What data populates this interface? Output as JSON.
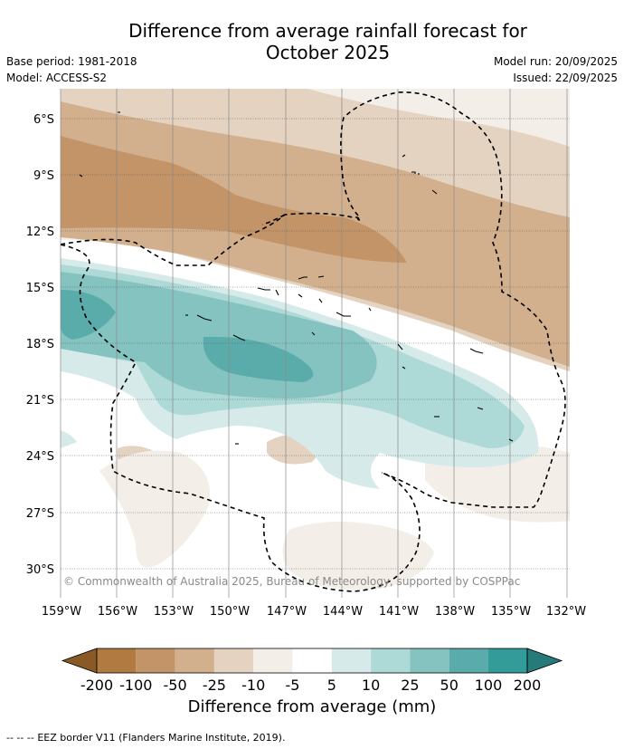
{
  "header": {
    "title_line1": "Difference from average rainfall forecast for",
    "title_line2": "October 2025",
    "base_period": "Base period: 1981-2018",
    "model": "Model: ACCESS-S2",
    "model_run": "Model run: 20/09/2025",
    "issued": "Issued: 22/09/2025"
  },
  "map": {
    "latitude_labels": [
      "6°S",
      "9°S",
      "12°S",
      "15°S",
      "18°S",
      "21°S",
      "24°S",
      "27°S",
      "30°S"
    ],
    "longitude_labels": [
      "159°W",
      "156°W",
      "153°W",
      "150°W",
      "147°W",
      "144°W",
      "141°W",
      "138°W",
      "135°W",
      "132°W"
    ],
    "copyright": "© Commonwealth of Australia 2025, Bureau of Meteorology, supported by COSPPac"
  },
  "colorbar": {
    "tick_labels": [
      "-200",
      "-100",
      "-50",
      "-25",
      "-10",
      "-5",
      "5",
      "10",
      "25",
      "50",
      "100",
      "200"
    ],
    "colors": [
      "#8a5a26",
      "#b07a40",
      "#c29468",
      "#d2b08e",
      "#e5d3c1",
      "#f3eee8",
      "#ffffff",
      "#d6ebe9",
      "#add9d6",
      "#84c3c0",
      "#5aacaa",
      "#339b98",
      "#267a77"
    ],
    "title": "Difference from average (mm)"
  },
  "footer": {
    "legend_marker": "--  --  --",
    "legend_text": "EEZ border V11 (Flanders Marine Institute, 2019)."
  }
}
